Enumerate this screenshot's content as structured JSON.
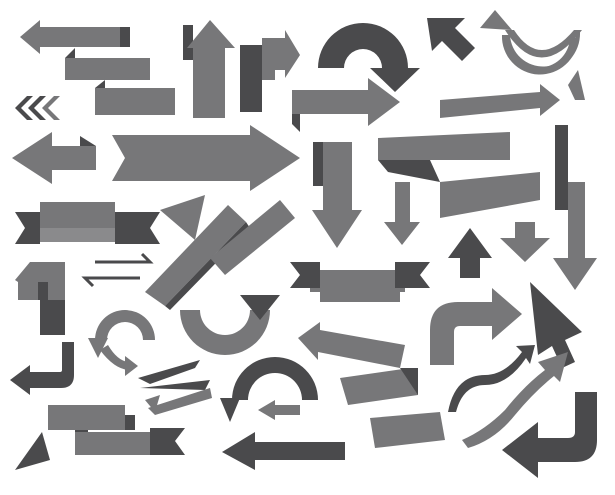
{
  "colors": {
    "background": "#ffffff",
    "mid": "#777779",
    "dark": "#4a4a4c",
    "light": "#8a8a8c"
  },
  "icons": [
    "zigzag-ribbon-arrow-icon",
    "folded-up-arrow-icon",
    "bent-up-right-arrow-icon",
    "u-turn-arrow-icon",
    "diagonal-up-left-arrow-icon",
    "curved-return-arrow-icon",
    "triple-chevron-left-icon",
    "right-arrow-icon",
    "ribbon-right-arrow-icon",
    "left-arrow-icon",
    "big-right-arrow-icon",
    "folded-down-arrow-icon",
    "down-arrow-icon",
    "zigzag-ribbon-left-icon",
    "ribbon-banner-icon",
    "diagonal-arrow-icon",
    "diagonal-folded-arrow-icon",
    "up-arrow-icon",
    "down-arrow-small-icon",
    "double-headed-arrow-icon",
    "banner-ribbon-icon",
    "bent-arrow-icon",
    "circular-arrow-icon",
    "curved-down-arrow-icon",
    "cursor-arrow-icon",
    "bent-right-arrow-icon",
    "hook-down-left-arrow-icon",
    "left-pointing-arrow-icon",
    "fletched-arrow-icon",
    "semi-circle-left-arrow-icon",
    "wavy-arrow-icon",
    "wavy-ribbon-arrow-icon",
    "zigzag-ribbon-bottom-icon",
    "long-left-arrow-icon",
    "curved-arrow-icon",
    "bottom-left-arrow-icon",
    "big-left-hook-arrow-icon"
  ]
}
